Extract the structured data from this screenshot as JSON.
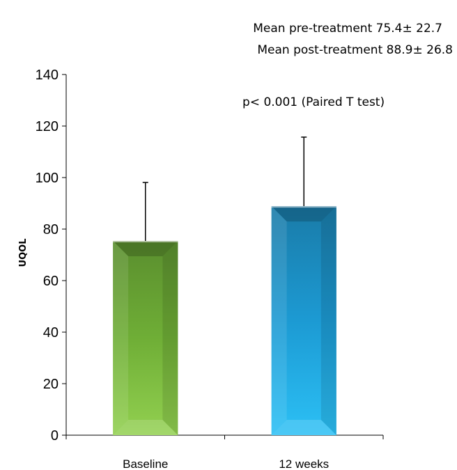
{
  "chart_data": {
    "type": "bar",
    "title": "",
    "xlabel": "",
    "ylabel": "UQOL",
    "ylim": [
      0,
      140
    ],
    "yticks": [
      0,
      20,
      40,
      60,
      80,
      100,
      120,
      140
    ],
    "categories": [
      "Baseline",
      "12 weeks"
    ],
    "values": [
      75.4,
      88.9
    ],
    "error": [
      22.7,
      26.8
    ],
    "colors": [
      "#7cc242",
      "#1fa8e0"
    ],
    "grid": false,
    "annotations": [
      "Mean pre-treatment 75.4± 22.7",
      "Mean post-treatment 88.9± 26.8",
      "p< 0.001 (Paired T test)"
    ]
  }
}
